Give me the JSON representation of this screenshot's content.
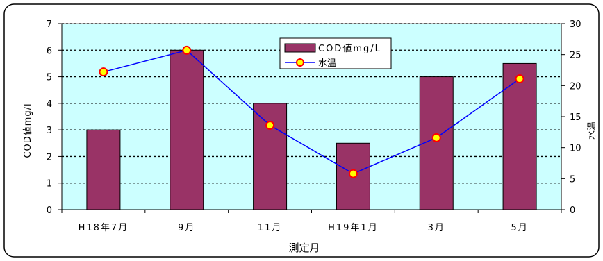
{
  "chart_data": {
    "type": "bar",
    "categories": [
      "H18年7月",
      "9月",
      "11月",
      "H19年1月",
      "3月",
      "5月"
    ],
    "series": [
      {
        "name": "COD値mg/L",
        "type": "bar",
        "axis": "left",
        "color": "#993366",
        "values": [
          3,
          6,
          4,
          2.5,
          5,
          5.5
        ]
      },
      {
        "name": "水温",
        "type": "line",
        "axis": "right",
        "color": "#0000ff",
        "marker_fill": "#ffff00",
        "marker_edge": "#ff0000",
        "values": [
          22.2,
          25.7,
          13.6,
          5.8,
          11.6,
          21.1
        ]
      }
    ],
    "xlabel": "測定月",
    "ylabel_left": "COD値mg/l",
    "ylabel_right": "水温",
    "ylim_left": [
      0,
      7
    ],
    "yticks_left": [
      "0",
      "1",
      "2",
      "3",
      "4",
      "5",
      "6",
      "7"
    ],
    "ylim_right": [
      0,
      30
    ],
    "yticks_right": [
      "0",
      "5",
      "10",
      "15",
      "20",
      "25",
      "30"
    ],
    "grid": "dotted-horizontal",
    "plot_background": "#ccffff",
    "legend_position": "top-center"
  }
}
